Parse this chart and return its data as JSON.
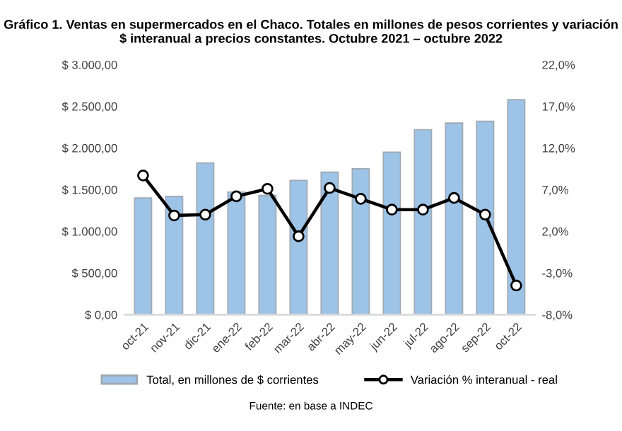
{
  "chart_data": {
    "type": "bar",
    "title": "Gráfico 1. Ventas en supermercados en el Chaco. Totales en millones de pesos corrientes y variación $ interanual a precios constantes. Octubre 2021 – octubre 2022",
    "categories": [
      "oct-21",
      "nov-21",
      "dic-21",
      "ene-22",
      "feb-22",
      "mar-22",
      "abr-22",
      "may-22",
      "jun-22",
      "jul-22",
      "ago-22",
      "sep-22",
      "oct-22"
    ],
    "series": [
      {
        "name": "Total, en millones de $ corrientes",
        "color": "#9dc3e6",
        "values": [
          1400,
          1420,
          1820,
          1470,
          1430,
          1610,
          1710,
          1750,
          1950,
          2220,
          2300,
          2320,
          2580
        ]
      },
      {
        "name": "Variación % interanual - real",
        "type": "line",
        "axis": "y2",
        "color": "#000000",
        "marker": "circle",
        "values": [
          8.7,
          3.9,
          4.0,
          6.2,
          7.1,
          1.4,
          7.2,
          5.9,
          4.6,
          4.6,
          6.0,
          4.0,
          -4.5
        ]
      }
    ],
    "ylim": [
      0,
      3000
    ],
    "yticks": [
      {
        "value": 0,
        "label": "$ 0,00"
      },
      {
        "value": 500,
        "label": "$ 500,00"
      },
      {
        "value": 1000,
        "label": "$ 1.000,00"
      },
      {
        "value": 1500,
        "label": "$ 1.500,00"
      },
      {
        "value": 2000,
        "label": "$ 2.000,00"
      },
      {
        "value": 2500,
        "label": "$ 2.500,00"
      },
      {
        "value": 3000,
        "label": "$ 3.000,00"
      }
    ],
    "y2lim": [
      -8,
      22
    ],
    "y2ticks": [
      {
        "value": -8,
        "label": "-8,0%"
      },
      {
        "value": -3,
        "label": "-3,0%"
      },
      {
        "value": 2,
        "label": "2,0%"
      },
      {
        "value": 7,
        "label": "7,0%"
      },
      {
        "value": 12,
        "label": "12,0%"
      },
      {
        "value": 17,
        "label": "17,0%"
      },
      {
        "value": 22,
        "label": "22,0%"
      }
    ],
    "legend": "bottom",
    "grid": false,
    "annotations": [
      "Fuente: en base a INDEC"
    ]
  }
}
